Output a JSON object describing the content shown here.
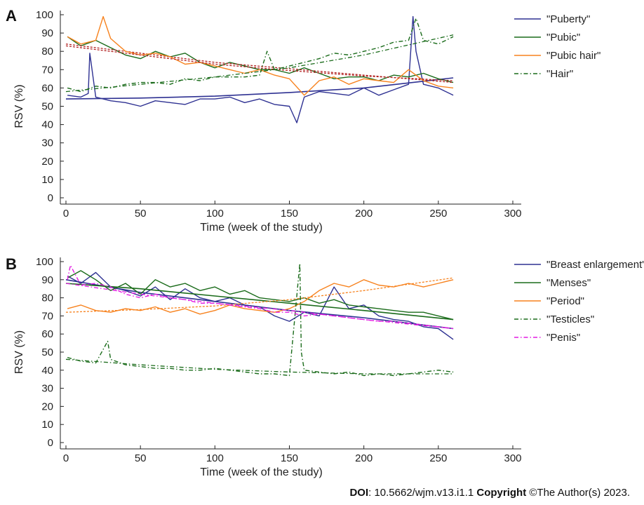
{
  "footer": {
    "doi_label": "DOI",
    "doi_value": ": 10.5662/wjm.v13.i1.1 ",
    "copyright_label": "Copyright",
    "copyright_text": " ©The Author(s) 2023."
  },
  "chart_data": [
    {
      "panel": "A",
      "type": "line",
      "xlabel": "Time (week of the study)",
      "ylabel": "RSV (%)",
      "xlim": [
        0,
        300
      ],
      "ylim": [
        0,
        100
      ],
      "xticks": [
        0,
        50,
        100,
        150,
        200,
        250,
        300
      ],
      "yticks": [
        0,
        10,
        20,
        30,
        40,
        50,
        60,
        70,
        80,
        90,
        100
      ],
      "grid": false,
      "legend": "right",
      "series": [
        {
          "name": "\"Puberty\"",
          "color": "#2e3192",
          "style": "solid",
          "x": [
            1,
            10,
            15,
            16,
            20,
            30,
            40,
            50,
            60,
            70,
            80,
            90,
            100,
            110,
            120,
            130,
            140,
            150,
            155,
            160,
            170,
            180,
            190,
            200,
            210,
            220,
            230,
            233,
            235,
            240,
            250,
            260
          ],
          "values": [
            56,
            55,
            57,
            79,
            55,
            53,
            52,
            50,
            53,
            52,
            51,
            54,
            54,
            55,
            52,
            54,
            51,
            50,
            41,
            55,
            58,
            57,
            56,
            60,
            56,
            59,
            62,
            99,
            80,
            62,
            60,
            56
          ],
          "trend": [
            [
              0,
              54
            ],
            [
              50,
              54.5
            ],
            [
              100,
              55.5
            ],
            [
              150,
              57.5
            ],
            [
              200,
              60
            ],
            [
              260,
              65.5
            ]
          ]
        },
        {
          "name": "\"Pubic\"",
          "color": "#1a6b1a",
          "style": "solid",
          "x": [
            1,
            10,
            20,
            30,
            40,
            50,
            60,
            70,
            80,
            90,
            100,
            110,
            120,
            130,
            140,
            150,
            160,
            170,
            180,
            190,
            200,
            210,
            220,
            230,
            240,
            250,
            260
          ],
          "values": [
            88,
            83,
            86,
            82,
            78,
            76,
            80,
            77,
            79,
            74,
            71,
            74,
            72,
            70,
            70,
            68,
            71,
            68,
            65,
            66,
            66,
            64,
            67,
            66,
            68,
            65,
            63
          ],
          "trend": [
            [
              0,
              84
            ],
            [
              50,
              79
            ],
            [
              100,
              74
            ],
            [
              150,
              70.5
            ],
            [
              200,
              67
            ],
            [
              260,
              63
            ]
          ]
        },
        {
          "name": "\"Pubic hair\"",
          "color": "#f7821e",
          "style": "solid",
          "x": [
            1,
            10,
            20,
            25,
            30,
            40,
            50,
            60,
            70,
            80,
            90,
            100,
            110,
            120,
            130,
            140,
            150,
            160,
            170,
            180,
            190,
            200,
            210,
            220,
            230,
            240,
            250,
            260
          ],
          "values": [
            88,
            84,
            86,
            99,
            87,
            80,
            78,
            79,
            77,
            73,
            74,
            72,
            70,
            68,
            70,
            67,
            65,
            56,
            64,
            66,
            62,
            65,
            64,
            63,
            70,
            64,
            61,
            60
          ],
          "trend": [
            [
              0,
              83
            ],
            [
              50,
              78
            ],
            [
              100,
              73
            ],
            [
              150,
              69.5
            ],
            [
              200,
              66.5
            ],
            [
              260,
              64
            ]
          ]
        },
        {
          "name": "\"Hair\"",
          "color": "#1a6b1a",
          "style": "dashdot",
          "x": [
            1,
            10,
            20,
            30,
            40,
            50,
            60,
            70,
            80,
            90,
            100,
            110,
            120,
            130,
            135,
            140,
            150,
            160,
            170,
            180,
            190,
            200,
            210,
            220,
            230,
            235,
            240,
            250,
            260
          ],
          "values": [
            60,
            58,
            61,
            60,
            62,
            63,
            63,
            62,
            65,
            64,
            66,
            66,
            66,
            67,
            80,
            70,
            72,
            74,
            76,
            79,
            78,
            80,
            82,
            85,
            86,
            98,
            86,
            84,
            88
          ],
          "trend": [
            [
              0,
              58
            ],
            [
              50,
              62
            ],
            [
              100,
              66
            ],
            [
              150,
              71
            ],
            [
              200,
              78
            ],
            [
              260,
              89
            ]
          ]
        }
      ]
    },
    {
      "panel": "B",
      "type": "line",
      "xlabel": "Time (week of the study)",
      "ylabel": "RSV (%)",
      "xlim": [
        0,
        300
      ],
      "ylim": [
        0,
        100
      ],
      "xticks": [
        0,
        50,
        100,
        150,
        200,
        250,
        300
      ],
      "yticks": [
        0,
        10,
        20,
        30,
        40,
        50,
        60,
        70,
        80,
        90,
        100
      ],
      "grid": false,
      "legend": "right",
      "series": [
        {
          "name": "\"Breast enlargement\"",
          "color": "#2e3192",
          "style": "solid",
          "x": [
            1,
            10,
            20,
            30,
            40,
            50,
            60,
            70,
            80,
            90,
            100,
            110,
            120,
            130,
            140,
            150,
            160,
            170,
            180,
            190,
            200,
            210,
            220,
            230,
            240,
            250,
            260
          ],
          "values": [
            92,
            88,
            94,
            86,
            84,
            81,
            86,
            79,
            85,
            80,
            78,
            80,
            76,
            75,
            70,
            67,
            72,
            70,
            86,
            74,
            76,
            70,
            68,
            67,
            64,
            63,
            57
          ],
          "trend": [
            [
              0,
              90
            ],
            [
              50,
              83
            ],
            [
              100,
              78
            ],
            [
              150,
              73
            ],
            [
              200,
              69
            ],
            [
              260,
              63
            ]
          ]
        },
        {
          "name": "\"Menses\"",
          "color": "#1a6b1a",
          "style": "solid",
          "x": [
            1,
            10,
            20,
            30,
            40,
            50,
            60,
            70,
            80,
            90,
            100,
            110,
            120,
            130,
            140,
            150,
            160,
            170,
            180,
            190,
            200,
            210,
            220,
            230,
            240,
            250,
            260
          ],
          "values": [
            91,
            95,
            90,
            84,
            88,
            82,
            90,
            86,
            88,
            84,
            86,
            82,
            84,
            80,
            79,
            78,
            80,
            77,
            79,
            76,
            75,
            74,
            73,
            72,
            72,
            70,
            68
          ],
          "trend": [
            [
              0,
              88
            ],
            [
              50,
              85
            ],
            [
              100,
              81
            ],
            [
              150,
              77
            ],
            [
              200,
              73
            ],
            [
              260,
              68
            ]
          ]
        },
        {
          "name": "\"Period\"",
          "color": "#f7821e",
          "style": "solid",
          "x": [
            1,
            10,
            20,
            30,
            40,
            50,
            60,
            70,
            80,
            90,
            100,
            110,
            120,
            130,
            140,
            150,
            160,
            170,
            180,
            190,
            200,
            210,
            220,
            230,
            240,
            250,
            260
          ],
          "values": [
            74,
            76,
            73,
            72,
            74,
            73,
            75,
            72,
            74,
            71,
            73,
            76,
            74,
            73,
            72,
            74,
            78,
            84,
            88,
            86,
            90,
            87,
            86,
            88,
            86,
            88,
            90
          ],
          "trend": [
            [
              0,
              72
            ],
            [
              50,
              73.5
            ],
            [
              100,
              75.5
            ],
            [
              150,
              79
            ],
            [
              200,
              84
            ],
            [
              260,
              91
            ]
          ]
        },
        {
          "name": "\"Testicles\"",
          "color": "#1a6b1a",
          "style": "dashdot",
          "x": [
            1,
            10,
            20,
            28,
            30,
            40,
            50,
            60,
            70,
            80,
            90,
            100,
            110,
            120,
            130,
            140,
            150,
            157,
            158,
            160,
            170,
            180,
            190,
            200,
            210,
            220,
            230,
            240,
            250,
            260
          ],
          "values": [
            47,
            45,
            44,
            56,
            46,
            43,
            42,
            41,
            41,
            40,
            40,
            41,
            40,
            39,
            38,
            38,
            37,
            99,
            50,
            40,
            39,
            38,
            39,
            37,
            38,
            37,
            38,
            39,
            40,
            39
          ],
          "trend": [
            [
              0,
              46
            ],
            [
              50,
              43
            ],
            [
              100,
              40.5
            ],
            [
              150,
              39
            ],
            [
              200,
              38
            ],
            [
              260,
              38
            ]
          ]
        },
        {
          "name": "\"Penis\"",
          "color": "#e21ce2",
          "style": "dashdot",
          "x": [
            1,
            3,
            10,
            20,
            30,
            40,
            50,
            60,
            70,
            80,
            90,
            100,
            110,
            120,
            130,
            140,
            150,
            160,
            170,
            180,
            190,
            200,
            210,
            220,
            230,
            240,
            250,
            260
          ],
          "values": [
            90,
            98,
            87,
            88,
            86,
            82,
            80,
            82,
            80,
            79,
            77,
            77,
            76,
            75,
            74,
            72,
            72,
            70,
            71,
            70,
            69,
            68,
            67,
            67,
            66,
            65,
            64,
            63
          ],
          "trend": [
            [
              0,
              88
            ],
            [
              50,
              82
            ],
            [
              100,
              77
            ],
            [
              150,
              73
            ],
            [
              200,
              68
            ],
            [
              260,
              63
            ]
          ]
        }
      ]
    }
  ]
}
